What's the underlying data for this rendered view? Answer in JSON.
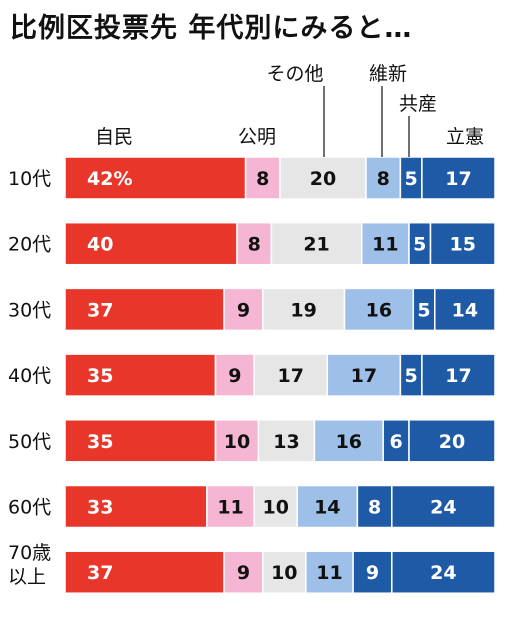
{
  "title": "比例区投票先 年代別にみると…",
  "chart_data": {
    "type": "bar",
    "stacked": true,
    "orientation": "horizontal",
    "title": "比例区投票先 年代別にみると…",
    "categories": [
      "10代",
      "20代",
      "30代",
      "40代",
      "50代",
      "60代",
      "70歳以上"
    ],
    "category_lines": [
      [
        "10代"
      ],
      [
        "20代"
      ],
      [
        "30代"
      ],
      [
        "40代"
      ],
      [
        "50代"
      ],
      [
        "60代"
      ],
      [
        "70歳",
        "以上"
      ]
    ],
    "first_value_suffix": "%",
    "series": [
      {
        "name": "自民",
        "color": "#e8362a",
        "text_color": "#ffffff",
        "values": [
          42,
          40,
          37,
          35,
          35,
          33,
          37
        ]
      },
      {
        "name": "公明",
        "color": "#f4b6d3",
        "text_color": "#111111",
        "values": [
          8,
          8,
          9,
          9,
          10,
          11,
          9
        ]
      },
      {
        "name": "その他",
        "color": "#e6e6e6",
        "text_color": "#111111",
        "values": [
          20,
          21,
          19,
          17,
          13,
          10,
          10
        ]
      },
      {
        "name": "維新",
        "color": "#9ec0e8",
        "text_color": "#111111",
        "values": [
          8,
          11,
          16,
          17,
          16,
          14,
          11
        ]
      },
      {
        "name": "共産",
        "color": "#1f5aa6",
        "text_color": "#ffffff",
        "values": [
          5,
          5,
          5,
          5,
          6,
          8,
          9
        ]
      },
      {
        "name": "立憲",
        "color": "#1f5aa6",
        "text_color": "#ffffff",
        "values": [
          17,
          15,
          14,
          17,
          20,
          24,
          24
        ]
      }
    ]
  }
}
